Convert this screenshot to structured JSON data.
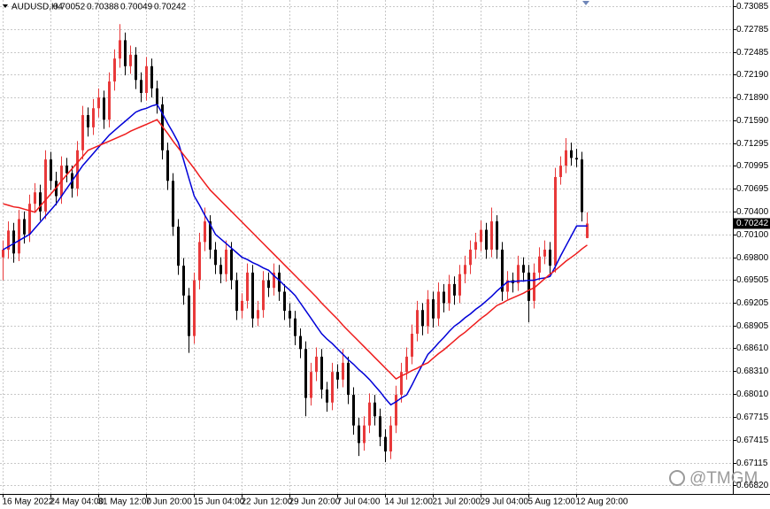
{
  "chart_data": {
    "type": "candlestick",
    "title": "AUDUSD,H4",
    "watermark": "@TMGM",
    "grid": true,
    "up_color": "#e8393a",
    "down_color": "#000000",
    "categories": [
      "16 May 2022",
      null,
      null,
      null,
      null,
      null,
      null,
      null,
      null,
      "24 May 04:00",
      null,
      null,
      null,
      null,
      null,
      null,
      null,
      null,
      "31 May 12:00",
      null,
      null,
      null,
      null,
      null,
      null,
      null,
      null,
      "7 Jun 20:00",
      null,
      null,
      null,
      null,
      null,
      null,
      null,
      null,
      "15 Jun 04:00",
      null,
      null,
      null,
      null,
      null,
      null,
      null,
      null,
      "22 Jun 12:00",
      null,
      null,
      null,
      null,
      null,
      null,
      null,
      null,
      "29 Jun 20:00",
      null,
      null,
      null,
      null,
      null,
      null,
      null,
      null,
      "7 Jul 04:00",
      null,
      null,
      null,
      null,
      null,
      null,
      null,
      null,
      "14 Jul 12:00",
      null,
      null,
      null,
      null,
      null,
      null,
      null,
      null,
      "21 Jul 20:00",
      null,
      null,
      null,
      null,
      null,
      null,
      null,
      null,
      "29 Jul 04:00",
      null,
      null,
      null,
      null,
      null,
      null,
      null,
      null,
      "5 Aug 12:00",
      null,
      null,
      null,
      null,
      null,
      null,
      null,
      null,
      "12 Aug 20:00",
      null,
      null
    ],
    "open": [
      0.698,
      0.699,
      0.7015,
      0.6985,
      0.703,
      0.701,
      0.705,
      0.7065,
      0.704,
      0.7108,
      0.708,
      0.706,
      0.71,
      0.709,
      0.707,
      0.712,
      0.7166,
      0.715,
      0.7175,
      0.7189,
      0.716,
      0.721,
      0.724,
      0.7264,
      0.723,
      0.7245,
      0.7212,
      0.7195,
      0.723,
      0.7201,
      0.718,
      0.712,
      0.708,
      0.702,
      0.6969,
      0.693,
      0.6877,
      0.695,
      0.7,
      0.7027,
      0.699,
      0.697,
      0.6958,
      0.699,
      0.695,
      0.691,
      0.6923,
      0.696,
      0.69,
      0.6911,
      0.695,
      0.694,
      0.696,
      0.6935,
      0.691,
      0.69,
      0.6877,
      0.686,
      0.6796,
      0.683,
      0.685,
      0.6807,
      0.679,
      0.683,
      0.682,
      0.6842,
      0.68,
      0.676,
      0.6737,
      0.676,
      0.679,
      0.6772,
      0.6745,
      0.6726,
      0.676,
      0.68,
      0.683,
      0.685,
      0.688,
      0.6911,
      0.689,
      0.6925,
      0.69,
      0.6935,
      0.692,
      0.6945,
      0.693,
      0.6958,
      0.697,
      0.699,
      0.7,
      0.7016,
      0.699,
      0.7027,
      0.699,
      0.6935,
      0.695,
      0.6946,
      0.697,
      0.696,
      0.6923,
      0.696,
      0.6981,
      0.699,
      0.6969,
      0.7085,
      0.71,
      0.712,
      0.711,
      0.7108,
      0.70052
    ],
    "high": [
      0.7002,
      0.7027,
      0.7025,
      0.7042,
      0.704,
      0.7062,
      0.7077,
      0.7075,
      0.712,
      0.7118,
      0.7092,
      0.7112,
      0.711,
      0.71,
      0.7132,
      0.7178,
      0.7176,
      0.7187,
      0.7201,
      0.7198,
      0.7222,
      0.7252,
      0.7285,
      0.7274,
      0.7257,
      0.7255,
      0.7222,
      0.7242,
      0.724,
      0.7211,
      0.719,
      0.713,
      0.709,
      0.703,
      0.6979,
      0.694,
      0.696,
      0.7012,
      0.7045,
      0.7035,
      0.7,
      0.698,
      0.7002,
      0.7,
      0.696,
      0.6933,
      0.6972,
      0.697,
      0.6923,
      0.6962,
      0.696,
      0.6972,
      0.697,
      0.6945,
      0.692,
      0.691,
      0.6887,
      0.687,
      0.6842,
      0.6862,
      0.686,
      0.6817,
      0.6842,
      0.684,
      0.686,
      0.685,
      0.681,
      0.677,
      0.6772,
      0.6802,
      0.68,
      0.6782,
      0.6755,
      0.6772,
      0.6812,
      0.6842,
      0.6862,
      0.6892,
      0.6923,
      0.692,
      0.6937,
      0.6935,
      0.6947,
      0.6945,
      0.6957,
      0.6955,
      0.697,
      0.6982,
      0.7002,
      0.7012,
      0.7028,
      0.7025,
      0.7045,
      0.7035,
      0.7,
      0.6962,
      0.696,
      0.6982,
      0.698,
      0.697,
      0.6972,
      0.6993,
      0.7002,
      0.7,
      0.7097,
      0.7112,
      0.7136,
      0.713,
      0.7122,
      0.7118,
      0.70388
    ],
    "low": [
      0.695,
      0.6978,
      0.6973,
      0.6975,
      0.6998,
      0.7,
      0.7038,
      0.7028,
      0.703,
      0.7068,
      0.7048,
      0.705,
      0.7078,
      0.7058,
      0.706,
      0.7108,
      0.7138,
      0.714,
      0.7163,
      0.7148,
      0.715,
      0.7198,
      0.7228,
      0.7218,
      0.722,
      0.72,
      0.7183,
      0.7185,
      0.7189,
      0.7168,
      0.7108,
      0.7068,
      0.7008,
      0.6957,
      0.6918,
      0.6855,
      0.6867,
      0.6938,
      0.6988,
      0.6978,
      0.6958,
      0.6946,
      0.6948,
      0.6938,
      0.6898,
      0.69,
      0.6913,
      0.6888,
      0.689,
      0.6901,
      0.6928,
      0.693,
      0.6923,
      0.6898,
      0.6888,
      0.6865,
      0.6848,
      0.6772,
      0.6786,
      0.6818,
      0.6795,
      0.6778,
      0.678,
      0.6808,
      0.681,
      0.6788,
      0.6748,
      0.672,
      0.6727,
      0.675,
      0.676,
      0.6733,
      0.6712,
      0.6716,
      0.675,
      0.679,
      0.682,
      0.684,
      0.687,
      0.6878,
      0.688,
      0.6888,
      0.689,
      0.6908,
      0.691,
      0.6918,
      0.692,
      0.6946,
      0.6958,
      0.6978,
      0.6988,
      0.6978,
      0.698,
      0.6978,
      0.6923,
      0.6925,
      0.6934,
      0.6936,
      0.6948,
      0.6895,
      0.6913,
      0.695,
      0.6971,
      0.6957,
      0.696,
      0.7075,
      0.709,
      0.71,
      0.7098,
      0.7027,
      0.70049
    ],
    "close": [
      0.699,
      0.7015,
      0.6985,
      0.703,
      0.701,
      0.705,
      0.7065,
      0.704,
      0.7108,
      0.708,
      0.706,
      0.71,
      0.709,
      0.707,
      0.712,
      0.7166,
      0.715,
      0.7175,
      0.7189,
      0.716,
      0.721,
      0.724,
      0.7264,
      0.723,
      0.7245,
      0.7212,
      0.7195,
      0.723,
      0.7201,
      0.718,
      0.712,
      0.708,
      0.702,
      0.6969,
      0.693,
      0.6877,
      0.695,
      0.7,
      0.7027,
      0.699,
      0.697,
      0.6958,
      0.699,
      0.695,
      0.691,
      0.6923,
      0.696,
      0.69,
      0.6911,
      0.695,
      0.694,
      0.696,
      0.6935,
      0.691,
      0.69,
      0.6877,
      0.686,
      0.6796,
      0.683,
      0.685,
      0.6807,
      0.679,
      0.683,
      0.682,
      0.6842,
      0.68,
      0.676,
      0.6737,
      0.676,
      0.679,
      0.6772,
      0.6745,
      0.6726,
      0.676,
      0.68,
      0.683,
      0.685,
      0.688,
      0.6911,
      0.689,
      0.6925,
      0.69,
      0.6935,
      0.692,
      0.6945,
      0.693,
      0.6958,
      0.697,
      0.699,
      0.7,
      0.7016,
      0.699,
      0.7027,
      0.699,
      0.6935,
      0.695,
      0.6946,
      0.697,
      0.696,
      0.6923,
      0.696,
      0.6981,
      0.699,
      0.6969,
      0.7085,
      0.71,
      0.712,
      0.711,
      0.7108,
      0.7039,
      0.70242
    ],
    "series": [
      {
        "color": "#0000d8",
        "values": [
          0.699,
          0.6994,
          0.6998,
          0.7002,
          0.7006,
          0.701,
          0.7018,
          0.7026,
          0.7034,
          0.7042,
          0.705,
          0.706,
          0.707,
          0.708,
          0.709,
          0.71,
          0.7108,
          0.7116,
          0.7124,
          0.7132,
          0.714,
          0.7146,
          0.7152,
          0.7158,
          0.7164,
          0.717,
          0.7173,
          0.7175,
          0.7178,
          0.718,
          0.7168,
          0.7155,
          0.7143,
          0.713,
          0.7107,
          0.7083,
          0.706,
          0.7048,
          0.7035,
          0.7023,
          0.701,
          0.7004,
          0.6998,
          0.6992,
          0.6986,
          0.698,
          0.6977,
          0.6973,
          0.697,
          0.6966,
          0.6963,
          0.6956,
          0.695,
          0.6943,
          0.6937,
          0.693,
          0.692,
          0.691,
          0.69,
          0.689,
          0.688,
          0.6873,
          0.6867,
          0.686,
          0.6853,
          0.6846,
          0.684,
          0.6833,
          0.6827,
          0.682,
          0.6812,
          0.6804,
          0.6795,
          0.6787,
          0.6791,
          0.6796,
          0.68,
          0.6813,
          0.6827,
          0.684,
          0.6853,
          0.686,
          0.6868,
          0.6875,
          0.6883,
          0.689,
          0.6895,
          0.6901,
          0.6906,
          0.6912,
          0.6917,
          0.6923,
          0.6929,
          0.6936,
          0.6942,
          0.6948,
          0.6948,
          0.6949,
          0.6949,
          0.695,
          0.695,
          0.6952,
          0.6953,
          0.6955,
          0.6968,
          0.6982,
          0.6995,
          0.7008,
          0.7021,
          0.7021,
          0.7021
        ]
      },
      {
        "color": "#ee1c1c",
        "values": [
          0.705,
          0.7048,
          0.7046,
          0.7045,
          0.7043,
          0.7041,
          0.7039,
          0.7047,
          0.7055,
          0.7063,
          0.7071,
          0.708,
          0.7088,
          0.7096,
          0.7104,
          0.7112,
          0.712,
          0.7123,
          0.7126,
          0.7129,
          0.7132,
          0.7135,
          0.7138,
          0.7141,
          0.7145,
          0.7148,
          0.7151,
          0.7154,
          0.7157,
          0.716,
          0.7151,
          0.7142,
          0.7132,
          0.7123,
          0.7114,
          0.7105,
          0.7096,
          0.7086,
          0.7077,
          0.7068,
          0.7061,
          0.7054,
          0.7047,
          0.704,
          0.7033,
          0.7026,
          0.7019,
          0.7012,
          0.7005,
          0.6998,
          0.6991,
          0.6984,
          0.6977,
          0.697,
          0.6963,
          0.6956,
          0.6949,
          0.6942,
          0.6935,
          0.6928,
          0.692,
          0.6913,
          0.6906,
          0.6899,
          0.6891,
          0.6884,
          0.6877,
          0.687,
          0.6863,
          0.6856,
          0.6849,
          0.6842,
          0.6835,
          0.6828,
          0.6821,
          0.6825,
          0.6828,
          0.6832,
          0.6835,
          0.6839,
          0.6842,
          0.6848,
          0.6854,
          0.6859,
          0.6865,
          0.6871,
          0.6877,
          0.6882,
          0.6888,
          0.6894,
          0.69,
          0.6905,
          0.6911,
          0.6917,
          0.692,
          0.6924,
          0.6927,
          0.693,
          0.6933,
          0.6937,
          0.694,
          0.6946,
          0.6952,
          0.6958,
          0.6963,
          0.6969,
          0.6975,
          0.698,
          0.6985,
          0.6991,
          0.6996
        ]
      }
    ],
    "ylim": [
      0.66704,
      0.73166
    ],
    "yticks": [
      0.73085,
      0.72785,
      0.72485,
      {
        "value": 0.7219,
        "label": "0.72190"
      },
      {
        "value": 0.7189,
        "label": "0.71890"
      },
      {
        "value": 0.7159,
        "label": "0.71590"
      },
      0.71295,
      0.70995,
      0.70695,
      {
        "value": 0.704,
        "label": "0.70400"
      },
      {
        "value": 0.701,
        "label": "0.70100"
      },
      {
        "value": 0.698,
        "label": "0.69800"
      },
      0.69505,
      0.69205,
      0.68905,
      {
        "value": 0.6861,
        "label": "0.68610"
      },
      {
        "value": 0.6831,
        "label": "0.68310"
      },
      {
        "value": 0.6801,
        "label": "0.68010"
      },
      0.67715,
      0.67415,
      0.67115,
      {
        "value": 0.6682,
        "label": "0.66820"
      }
    ]
  }
}
